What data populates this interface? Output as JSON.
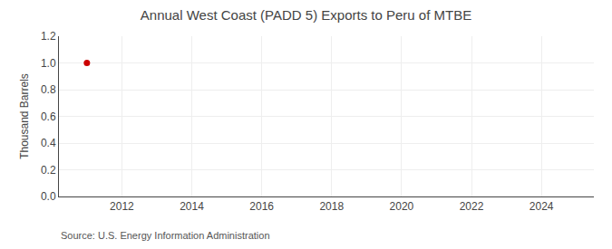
{
  "chart_data": {
    "type": "scatter",
    "title": "Annual West Coast (PADD 5) Exports to Peru of MTBE",
    "ylabel": "Thousand Barrels",
    "annotations": [
      "Source: U.S. Energy Information Administration"
    ],
    "x": [
      2011
    ],
    "values": [
      1.0
    ],
    "color": "#cc0000",
    "marker": "circle",
    "xlim": [
      2010.2,
      2025.5
    ],
    "xticks": [
      2012,
      2014,
      2016,
      2018,
      2020,
      2022,
      2024
    ],
    "ylim": [
      0.0,
      1.2
    ],
    "yticks": [
      {
        "value": 0.0,
        "label": "0.0"
      },
      0.2,
      0.4,
      0.6,
      0.8,
      {
        "value": 1.0,
        "label": "1.0"
      },
      1.2
    ],
    "grid": true
  }
}
